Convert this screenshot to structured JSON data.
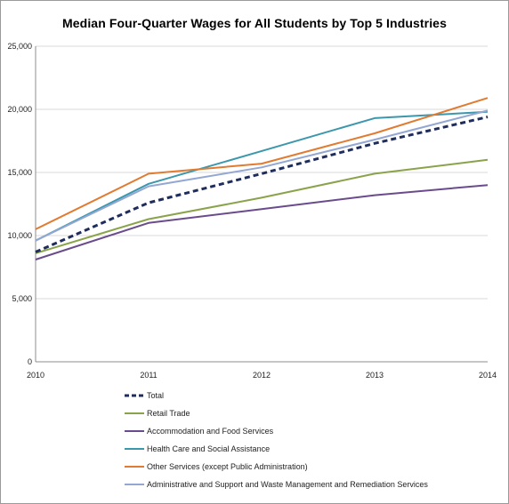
{
  "chart_data": {
    "type": "line",
    "title": "Median Four-Quarter Wages for All Students by Top 5 Industries",
    "xlabel": "",
    "ylabel": "",
    "x": [
      "2010",
      "2011",
      "2012",
      "2013",
      "2014"
    ],
    "ylim": [
      0,
      25000
    ],
    "yticks": [
      0,
      5000,
      10000,
      15000,
      20000,
      25000
    ],
    "ytick_labels": [
      "0",
      "5,000",
      "10,000",
      "15,000",
      "20,000",
      "25,000"
    ],
    "grid": "horizontal",
    "legend_position": "bottom",
    "series": [
      {
        "name": "Total",
        "values": [
          8700,
          12600,
          14900,
          17300,
          19400
        ],
        "color": "#1f2d5c",
        "style": "dashed"
      },
      {
        "name": "Retail Trade",
        "values": [
          8600,
          11300,
          13000,
          14900,
          16000
        ],
        "color": "#8aa34b",
        "style": "solid"
      },
      {
        "name": "Accommodation and Food Services",
        "values": [
          8100,
          11000,
          12100,
          13200,
          14000
        ],
        "color": "#6a4b8c",
        "style": "solid"
      },
      {
        "name": "Health Care and Social Assistance",
        "values": [
          9600,
          14100,
          16700,
          19300,
          19800
        ],
        "color": "#3c97ad",
        "style": "solid"
      },
      {
        "name": "Other Services (except Public Administration)",
        "values": [
          10500,
          14900,
          15700,
          18100,
          20900
        ],
        "color": "#e07b31",
        "style": "solid"
      },
      {
        "name": "Administrative and Support and Waste Management and Remediation Services",
        "values": [
          9600,
          13900,
          15400,
          17600,
          19900
        ],
        "color": "#93a7d2",
        "style": "solid"
      }
    ]
  }
}
